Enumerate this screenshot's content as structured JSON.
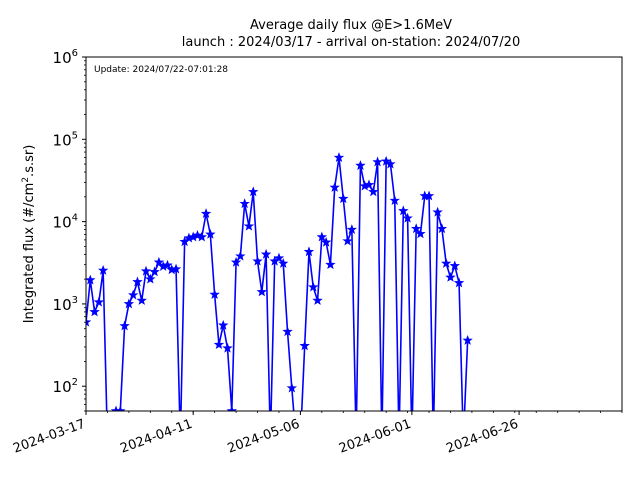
{
  "chart_data": {
    "type": "line",
    "title": "Average daily flux @E>1.6MeV",
    "subtitle": "launch : 2024/03/17 - arrival on-station: 2024/07/20",
    "annotation": "Update: 2024/07/22-07:01:28",
    "ylabel_main": "Integrated flux (#/cm",
    "ylabel_sup": "2",
    "ylabel_tail": ".s.sr)",
    "yscale": "log",
    "ylim": [
      50,
      1000000
    ],
    "yticks": [
      {
        "value": 100,
        "base": "10",
        "exp": "2"
      },
      {
        "value": 1000,
        "base": "10",
        "exp": "3"
      },
      {
        "value": 10000,
        "base": "10",
        "exp": "4"
      },
      {
        "value": 100000,
        "base": "10",
        "exp": "5"
      },
      {
        "value": 1000000,
        "base": "10",
        "exp": "6"
      }
    ],
    "xlim": [
      "2024-03-17",
      "2024-07-20"
    ],
    "xticks": [
      "2024-03-17",
      "2024-04-11",
      "2024-05-06",
      "2024-06-01",
      "2024-06-26"
    ],
    "grid": false,
    "series": [
      {
        "color": "#0000ff",
        "marker": "star",
        "points": [
          [
            "2024-03-17",
            600
          ],
          [
            "2024-03-18",
            1950
          ],
          [
            "2024-03-19",
            800
          ],
          [
            "2024-03-20",
            1050
          ],
          [
            "2024-03-21",
            2550
          ],
          [
            "2024-03-22",
            null
          ],
          [
            "2024-03-24",
            50
          ],
          [
            "2024-03-25",
            50
          ],
          [
            "2024-03-26",
            540
          ],
          [
            "2024-03-27",
            1000
          ],
          [
            "2024-03-28",
            1280
          ],
          [
            "2024-03-29",
            1850
          ],
          [
            "2024-03-30",
            1100
          ],
          [
            "2024-03-31",
            2500
          ],
          [
            "2024-04-01",
            2000
          ],
          [
            "2024-04-02",
            2450
          ],
          [
            "2024-04-03",
            3200
          ],
          [
            "2024-04-04",
            2850
          ],
          [
            "2024-04-05",
            2950
          ],
          [
            "2024-04-06",
            2600
          ],
          [
            "2024-04-07",
            2650
          ],
          [
            "2024-04-08",
            null
          ],
          [
            "2024-04-09",
            5700
          ],
          [
            "2024-04-10",
            6300
          ],
          [
            "2024-04-11",
            6500
          ],
          [
            "2024-04-12",
            6800
          ],
          [
            "2024-04-13",
            6500
          ],
          [
            "2024-04-14",
            12500
          ],
          [
            "2024-04-15",
            7000
          ],
          [
            "2024-04-16",
            1300
          ],
          [
            "2024-04-17",
            320
          ],
          [
            "2024-04-18",
            550
          ],
          [
            "2024-04-19",
            290
          ],
          [
            "2024-04-20",
            50
          ],
          [
            "2024-04-21",
            3200
          ],
          [
            "2024-04-22",
            3800
          ],
          [
            "2024-04-23",
            16500
          ],
          [
            "2024-04-24",
            8800
          ],
          [
            "2024-04-25",
            23000
          ],
          [
            "2024-04-26",
            3300
          ],
          [
            "2024-04-27",
            1400
          ],
          [
            "2024-04-28",
            4000
          ],
          [
            "2024-04-29",
            null
          ],
          [
            "2024-04-30",
            3300
          ],
          [
            "2024-05-01",
            3600
          ],
          [
            "2024-05-02",
            3100
          ],
          [
            "2024-05-03",
            460
          ],
          [
            "2024-05-04",
            95
          ],
          [
            "2024-05-05",
            null
          ],
          [
            "2024-05-06",
            null
          ],
          [
            "2024-05-07",
            310
          ],
          [
            "2024-05-08",
            4300
          ],
          [
            "2024-05-09",
            1600
          ],
          [
            "2024-05-10",
            1100
          ],
          [
            "2024-05-11",
            6500
          ],
          [
            "2024-05-12",
            5600
          ],
          [
            "2024-05-13",
            3000
          ],
          [
            "2024-05-14",
            26000
          ],
          [
            "2024-05-15",
            60000
          ],
          [
            "2024-05-16",
            19000
          ],
          [
            "2024-05-17",
            5800
          ],
          [
            "2024-05-18",
            8000
          ],
          [
            "2024-05-19",
            null
          ],
          [
            "2024-05-20",
            48000
          ],
          [
            "2024-05-21",
            27000
          ],
          [
            "2024-05-22",
            28000
          ],
          [
            "2024-05-23",
            23000
          ],
          [
            "2024-05-24",
            53000
          ],
          [
            "2024-05-25",
            null
          ],
          [
            "2024-05-26",
            54000
          ],
          [
            "2024-05-27",
            50000
          ],
          [
            "2024-05-28",
            18000
          ],
          [
            "2024-05-29",
            null
          ],
          [
            "2024-05-30",
            13500
          ],
          [
            "2024-05-31",
            11000
          ],
          [
            "2024-06-01",
            null
          ],
          [
            "2024-06-02",
            8200
          ],
          [
            "2024-06-03",
            7100
          ],
          [
            "2024-06-04",
            20500
          ],
          [
            "2024-06-05",
            20500
          ],
          [
            "2024-06-06",
            null
          ],
          [
            "2024-06-07",
            13000
          ],
          [
            "2024-06-08",
            8200
          ],
          [
            "2024-06-09",
            3100
          ],
          [
            "2024-06-10",
            2100
          ],
          [
            "2024-06-11",
            2900
          ],
          [
            "2024-06-12",
            1800
          ],
          [
            "2024-06-13",
            null
          ],
          [
            "2024-06-14",
            360
          ]
        ]
      }
    ]
  }
}
